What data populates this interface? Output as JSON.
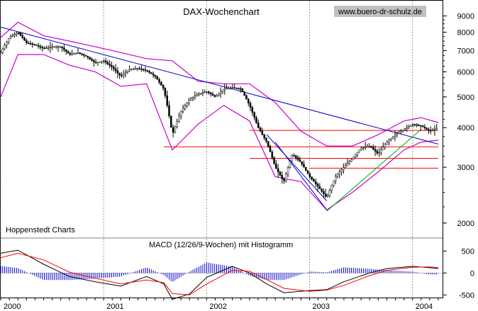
{
  "chart_data": [
    {
      "type": "candlestick",
      "title": "DAX-Wochenchart",
      "watermark": "www.buero-dr-schulz.de",
      "source_label": "Hoppenstedt Charts",
      "scale": "log",
      "ylim": [
        1850,
        9600
      ],
      "y_ticks": [
        {
          "value": 9000,
          "label": "9000"
        },
        {
          "value": 8000,
          "label": "8000"
        },
        {
          "value": 7000,
          "label": "7000"
        },
        {
          "value": 6000,
          "label": "6000"
        },
        {
          "value": 5000,
          "label": "5000"
        },
        {
          "value": 4000,
          "label": "4000"
        },
        {
          "value": 3000,
          "label": "3000"
        },
        {
          "value": 2000,
          "label": "2000"
        }
      ],
      "x_labels": [
        "2000",
        "2001",
        "2002",
        "2003",
        "2004"
      ],
      "xlim": [
        "2000-01",
        "2004-04"
      ],
      "close_path": [
        [
          "2000-01",
          6900
        ],
        [
          "2000-02",
          7700
        ],
        [
          "2000-03",
          8000
        ],
        [
          "2000-04",
          7400
        ],
        [
          "2000-05",
          7300
        ],
        [
          "2000-06",
          7100
        ],
        [
          "2000-07",
          7200
        ],
        [
          "2000-08",
          7200
        ],
        [
          "2000-09",
          6800
        ],
        [
          "2000-10",
          6900
        ],
        [
          "2000-11",
          6700
        ],
        [
          "2000-12",
          6400
        ],
        [
          "2001-01",
          6500
        ],
        [
          "2001-02",
          6200
        ],
        [
          "2001-03",
          5800
        ],
        [
          "2001-04",
          6100
        ],
        [
          "2001-05",
          6150
        ],
        [
          "2001-06",
          6050
        ],
        [
          "2001-07",
          5800
        ],
        [
          "2001-08",
          5300
        ],
        [
          "2001-09",
          3800
        ],
        [
          "2001-10",
          4500
        ],
        [
          "2001-11",
          4900
        ],
        [
          "2001-12",
          5100
        ],
        [
          "2002-01",
          5200
        ],
        [
          "2002-02",
          5000
        ],
        [
          "2002-03",
          5300
        ],
        [
          "2002-04",
          5350
        ],
        [
          "2002-05",
          5300
        ],
        [
          "2002-06",
          4700
        ],
        [
          "2002-07",
          4000
        ],
        [
          "2002-08",
          3600
        ],
        [
          "2002-09",
          3000
        ],
        [
          "2002-10",
          2700
        ],
        [
          "2002-11",
          3300
        ],
        [
          "2002-12",
          3100
        ],
        [
          "2003-01",
          2800
        ],
        [
          "2003-02",
          2600
        ],
        [
          "2003-03",
          2400
        ],
        [
          "2003-04",
          2800
        ],
        [
          "2003-05",
          3000
        ],
        [
          "2003-06",
          3200
        ],
        [
          "2003-07",
          3450
        ],
        [
          "2003-08",
          3500
        ],
        [
          "2003-09",
          3300
        ],
        [
          "2003-10",
          3600
        ],
        [
          "2003-11",
          3800
        ],
        [
          "2003-12",
          3950
        ],
        [
          "2004-01",
          4100
        ],
        [
          "2004-02",
          4050
        ],
        [
          "2004-03",
          3900
        ],
        [
          "2004-04",
          4000
        ]
      ],
      "bollinger_upper": [
        [
          "2000-01",
          7700
        ],
        [
          "2000-03",
          8600
        ],
        [
          "2000-06",
          7800
        ],
        [
          "2000-09",
          7500
        ],
        [
          "2000-12",
          7200
        ],
        [
          "2001-03",
          6900
        ],
        [
          "2001-06",
          6600
        ],
        [
          "2001-09",
          6500
        ],
        [
          "2001-12",
          5600
        ],
        [
          "2002-03",
          5500
        ],
        [
          "2002-06",
          5500
        ],
        [
          "2002-09",
          4800
        ],
        [
          "2002-12",
          3900
        ],
        [
          "2003-03",
          3500
        ],
        [
          "2003-06",
          3500
        ],
        [
          "2003-09",
          3800
        ],
        [
          "2003-12",
          4200
        ],
        [
          "2004-02",
          4300
        ],
        [
          "2004-04",
          4150
        ]
      ],
      "bollinger_lower": [
        [
          "2000-01",
          5000
        ],
        [
          "2000-03",
          6800
        ],
        [
          "2000-06",
          6800
        ],
        [
          "2000-09",
          6300
        ],
        [
          "2000-12",
          6000
        ],
        [
          "2001-03",
          5400
        ],
        [
          "2001-06",
          5500
        ],
        [
          "2001-09",
          3400
        ],
        [
          "2001-12",
          4100
        ],
        [
          "2002-03",
          4700
        ],
        [
          "2002-06",
          4200
        ],
        [
          "2002-09",
          2800
        ],
        [
          "2002-12",
          2700
        ],
        [
          "2003-03",
          2200
        ],
        [
          "2003-06",
          2500
        ],
        [
          "2003-09",
          2900
        ],
        [
          "2003-12",
          3400
        ],
        [
          "2004-02",
          3600
        ],
        [
          "2004-04",
          3650
        ]
      ],
      "trendlines": [
        {
          "color": "#0000cc",
          "from": [
            "2000-01",
            8300
          ],
          "to": [
            "2004-04",
            3550
          ]
        },
        {
          "color": "#0000cc",
          "from": [
            "2002-09",
            3600
          ],
          "to": [
            "2003-03",
            2200
          ]
        },
        {
          "color": "#0000cc",
          "from": [
            "2002-08",
            3800
          ],
          "to": [
            "2003-03",
            2350
          ]
        },
        {
          "color": "#00aa00",
          "from": [
            "2003-03",
            2180
          ],
          "to": [
            "2004-02",
            3950
          ]
        }
      ],
      "horizontal_lines": [
        {
          "color": "#ff0000",
          "value": 3920,
          "from": "2002-06",
          "to": "2004-04"
        },
        {
          "color": "#ff0000",
          "value": 3480,
          "from": "2001-08",
          "to": "2004-04"
        },
        {
          "color": "#ff0000",
          "value": 3200,
          "from": "2002-06",
          "to": "2004-04"
        },
        {
          "color": "#ff0000",
          "value": 2980,
          "from": "2003-01",
          "to": "2004-04"
        }
      ],
      "colors": {
        "price": "#000000",
        "bands": "#cc00cc",
        "trend": "#0000cc",
        "support": "#ff0000",
        "uptrend": "#00aa00"
      }
    },
    {
      "type": "line",
      "title": "MACD (12/26/9-Wochen) mit Histogramm",
      "ylim": [
        -560,
        700
      ],
      "y_ticks": [
        {
          "value": 500,
          "label": "500"
        },
        {
          "value": 0,
          "label": "0"
        },
        {
          "value": -500,
          "label": "-500"
        }
      ],
      "series": [
        {
          "color": "#000000",
          "values": [
            [
              "2000-01",
              450
            ],
            [
              "2000-03",
              520
            ],
            [
              "2000-06",
              200
            ],
            [
              "2000-09",
              -80
            ],
            [
              "2000-12",
              -200
            ],
            [
              "2001-03",
              -300
            ],
            [
              "2001-06",
              -80
            ],
            [
              "2001-08",
              -250
            ],
            [
              "2001-09",
              -600
            ],
            [
              "2001-11",
              -480
            ],
            [
              "2002-01",
              -100
            ],
            [
              "2002-04",
              150
            ],
            [
              "2002-06",
              0
            ],
            [
              "2002-08",
              -250
            ],
            [
              "2002-10",
              -450
            ],
            [
              "2003-01",
              -400
            ],
            [
              "2003-03",
              -380
            ],
            [
              "2003-05",
              -200
            ],
            [
              "2003-08",
              0
            ],
            [
              "2003-10",
              100
            ],
            [
              "2004-01",
              150
            ],
            [
              "2004-03",
              120
            ],
            [
              "2004-04",
              100
            ]
          ]
        },
        {
          "color": "#ff0000",
          "values": [
            [
              "2000-01",
              350
            ],
            [
              "2000-03",
              450
            ],
            [
              "2000-06",
              300
            ],
            [
              "2000-09",
              20
            ],
            [
              "2000-12",
              -120
            ],
            [
              "2001-03",
              -250
            ],
            [
              "2001-06",
              -160
            ],
            [
              "2001-08",
              -220
            ],
            [
              "2001-09",
              -470
            ],
            [
              "2001-11",
              -500
            ],
            [
              "2002-01",
              -250
            ],
            [
              "2002-04",
              60
            ],
            [
              "2002-06",
              40
            ],
            [
              "2002-08",
              -150
            ],
            [
              "2002-10",
              -350
            ],
            [
              "2003-01",
              -420
            ],
            [
              "2003-03",
              -390
            ],
            [
              "2003-05",
              -280
            ],
            [
              "2003-08",
              -60
            ],
            [
              "2003-10",
              60
            ],
            [
              "2004-01",
              130
            ],
            [
              "2004-03",
              140
            ],
            [
              "2004-04",
              120
            ]
          ]
        }
      ],
      "histogram_color": "#0000cc"
    }
  ]
}
